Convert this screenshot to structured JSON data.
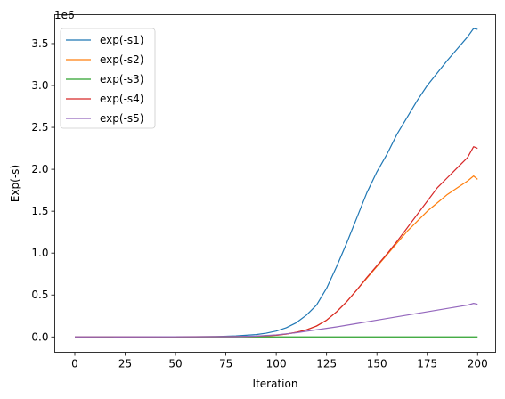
{
  "chart_data": {
    "type": "line",
    "xlabel": "Iteration",
    "ylabel": "Exp(-s)",
    "offset_label": "1e6",
    "xlim": [
      -9.95,
      208.95
    ],
    "ylim": [
      -0.183,
      3.845
    ],
    "x_ticks": [
      0,
      25,
      50,
      75,
      100,
      125,
      150,
      175,
      200
    ],
    "x_tick_labels": [
      "0",
      "25",
      "50",
      "75",
      "100",
      "125",
      "150",
      "175",
      "200"
    ],
    "y_ticks": [
      0.0,
      0.5,
      1.0,
      1.5,
      2.0,
      2.5,
      3.0,
      3.5
    ],
    "y_tick_labels": [
      "0.0",
      "0.5",
      "1.0",
      "1.5",
      "2.0",
      "2.5",
      "3.0",
      "3.5"
    ],
    "legend_position": "top-left",
    "grid": false,
    "series": [
      {
        "name": "exp(-s1)",
        "color": "#1f77b4",
        "points": [
          [
            0,
            0
          ],
          [
            60,
            0.002
          ],
          [
            70,
            0.005
          ],
          [
            80,
            0.012
          ],
          [
            90,
            0.028
          ],
          [
            95,
            0.045
          ],
          [
            100,
            0.07
          ],
          [
            105,
            0.11
          ],
          [
            110,
            0.17
          ],
          [
            115,
            0.26
          ],
          [
            120,
            0.38
          ],
          [
            125,
            0.58
          ],
          [
            130,
            0.84
          ],
          [
            135,
            1.12
          ],
          [
            140,
            1.42
          ],
          [
            145,
            1.72
          ],
          [
            150,
            1.97
          ],
          [
            155,
            2.18
          ],
          [
            160,
            2.42
          ],
          [
            165,
            2.62
          ],
          [
            170,
            2.82
          ],
          [
            175,
            3.0
          ],
          [
            180,
            3.15
          ],
          [
            185,
            3.3
          ],
          [
            190,
            3.44
          ],
          [
            195,
            3.58
          ],
          [
            198,
            3.68
          ],
          [
            200,
            3.67
          ]
        ]
      },
      {
        "name": "exp(-s2)",
        "color": "#ff7f0e",
        "points": [
          [
            0,
            0
          ],
          [
            80,
            0.003
          ],
          [
            90,
            0.008
          ],
          [
            100,
            0.02
          ],
          [
            105,
            0.035
          ],
          [
            110,
            0.055
          ],
          [
            115,
            0.085
          ],
          [
            120,
            0.13
          ],
          [
            125,
            0.2
          ],
          [
            130,
            0.3
          ],
          [
            135,
            0.42
          ],
          [
            140,
            0.56
          ],
          [
            145,
            0.7
          ],
          [
            150,
            0.84
          ],
          [
            155,
            0.98
          ],
          [
            160,
            1.12
          ],
          [
            165,
            1.26
          ],
          [
            170,
            1.38
          ],
          [
            175,
            1.5
          ],
          [
            180,
            1.6
          ],
          [
            185,
            1.7
          ],
          [
            190,
            1.78
          ],
          [
            195,
            1.86
          ],
          [
            198,
            1.92
          ],
          [
            200,
            1.88
          ]
        ]
      },
      {
        "name": "exp(-s3)",
        "color": "#2ca02c",
        "points": [
          [
            0,
            0
          ],
          [
            200,
            0
          ]
        ]
      },
      {
        "name": "exp(-s4)",
        "color": "#d62728",
        "points": [
          [
            0,
            0
          ],
          [
            80,
            0.003
          ],
          [
            90,
            0.008
          ],
          [
            100,
            0.02
          ],
          [
            105,
            0.035
          ],
          [
            110,
            0.055
          ],
          [
            115,
            0.085
          ],
          [
            120,
            0.13
          ],
          [
            125,
            0.2
          ],
          [
            130,
            0.3
          ],
          [
            135,
            0.42
          ],
          [
            140,
            0.56
          ],
          [
            145,
            0.71
          ],
          [
            150,
            0.85
          ],
          [
            155,
            0.99
          ],
          [
            160,
            1.14
          ],
          [
            165,
            1.3
          ],
          [
            170,
            1.46
          ],
          [
            175,
            1.62
          ],
          [
            180,
            1.78
          ],
          [
            185,
            1.9
          ],
          [
            190,
            2.02
          ],
          [
            195,
            2.14
          ],
          [
            198,
            2.27
          ],
          [
            200,
            2.25
          ]
        ]
      },
      {
        "name": "exp(-s5)",
        "color": "#9467bd",
        "points": [
          [
            0,
            0
          ],
          [
            80,
            0.003
          ],
          [
            90,
            0.01
          ],
          [
            100,
            0.025
          ],
          [
            110,
            0.05
          ],
          [
            120,
            0.085
          ],
          [
            130,
            0.12
          ],
          [
            140,
            0.16
          ],
          [
            150,
            0.2
          ],
          [
            160,
            0.24
          ],
          [
            170,
            0.28
          ],
          [
            180,
            0.32
          ],
          [
            190,
            0.36
          ],
          [
            195,
            0.38
          ],
          [
            198,
            0.4
          ],
          [
            200,
            0.39
          ]
        ]
      }
    ]
  }
}
